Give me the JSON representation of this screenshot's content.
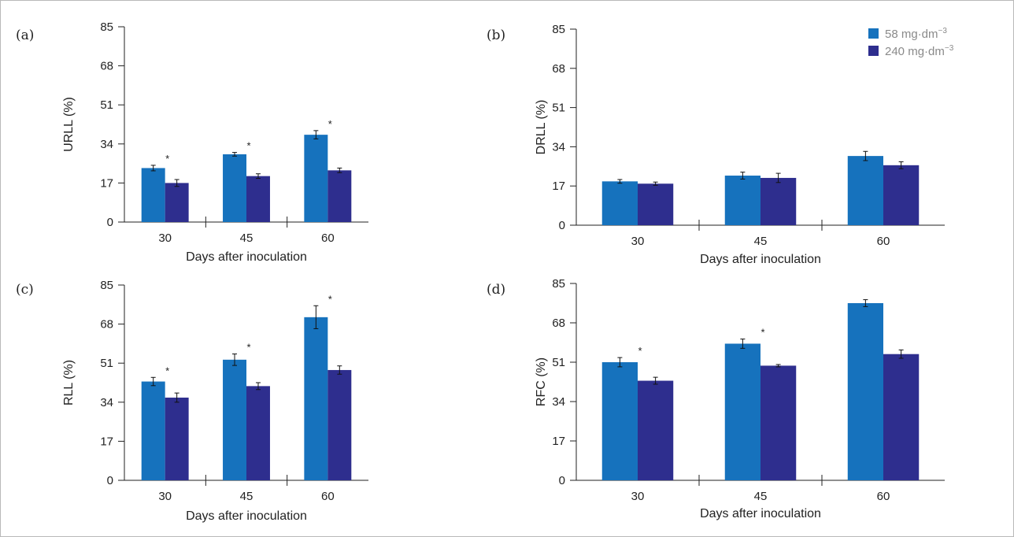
{
  "colors": {
    "series1": "#1672bd",
    "series2": "#2e2e8e",
    "axis": "#222222"
  },
  "legend": {
    "series1_main": "58 mg·dm",
    "series1_sup": "−3",
    "series2_main": "240 mg·dm",
    "series2_sup": "−3"
  },
  "chart_data": [
    {
      "type": "bar",
      "panel": "(a)",
      "categories": [
        "30",
        "45",
        "60"
      ],
      "xlabel": "Days after inoculation",
      "ylabel": "URLL (%)",
      "ylim": [
        0,
        85
      ],
      "yticks": [
        "0",
        "17",
        "34",
        "51",
        "68",
        "85"
      ],
      "series": [
        {
          "name": "58 mg·dm−3",
          "values": [
            23.5,
            29.5,
            38
          ],
          "errors": [
            1.2,
            0.8,
            1.8
          ]
        },
        {
          "name": "240 mg·dm−3",
          "values": [
            17,
            20,
            22.5
          ],
          "errors": [
            1.5,
            1,
            1
          ]
        }
      ],
      "significance": [
        "*",
        "*",
        "*"
      ]
    },
    {
      "type": "bar",
      "panel": "(b)",
      "categories": [
        "30",
        "45",
        "60"
      ],
      "xlabel": "Days after inoculation",
      "ylabel": "DRLL (%)",
      "ylim": [
        0,
        85
      ],
      "yticks": [
        "0",
        "17",
        "34",
        "51",
        "68",
        "85"
      ],
      "series": [
        {
          "name": "58 mg·dm−3",
          "values": [
            19,
            21.5,
            30
          ],
          "errors": [
            0.8,
            1.5,
            2
          ]
        },
        {
          "name": "240 mg·dm−3",
          "values": [
            18,
            20.5,
            26
          ],
          "errors": [
            0.7,
            2,
            1.5
          ]
        }
      ],
      "significance": [
        "",
        "",
        ""
      ]
    },
    {
      "type": "bar",
      "panel": "(c)",
      "categories": [
        "30",
        "45",
        "60"
      ],
      "xlabel": "Days after inoculation",
      "ylabel": "RLL (%)",
      "ylim": [
        0,
        85
      ],
      "yticks": [
        "0",
        "17",
        "34",
        "51",
        "68",
        "85"
      ],
      "series": [
        {
          "name": "58 mg·dm−3",
          "values": [
            43,
            52.5,
            71
          ],
          "errors": [
            1.8,
            2.5,
            5
          ]
        },
        {
          "name": "240 mg·dm−3",
          "values": [
            36,
            41,
            48
          ],
          "errors": [
            2,
            1.5,
            1.8
          ]
        }
      ],
      "significance": [
        "*",
        "*",
        "*"
      ]
    },
    {
      "type": "bar",
      "panel": "(d)",
      "categories": [
        "30",
        "45",
        "60"
      ],
      "xlabel": "Days after inoculation",
      "ylabel": "RFC (%)",
      "ylim": [
        0,
        85
      ],
      "yticks": [
        "0",
        "17",
        "34",
        "51",
        "68",
        "85"
      ],
      "series": [
        {
          "name": "58 mg·dm−3",
          "values": [
            51,
            59,
            76.5
          ],
          "errors": [
            2,
            2,
            1.5
          ]
        },
        {
          "name": "240 mg·dm−3",
          "values": [
            43,
            49.5,
            54.5
          ],
          "errors": [
            1.5,
            0.5,
            1.8
          ]
        }
      ],
      "significance": [
        "*",
        "*",
        ""
      ]
    }
  ]
}
